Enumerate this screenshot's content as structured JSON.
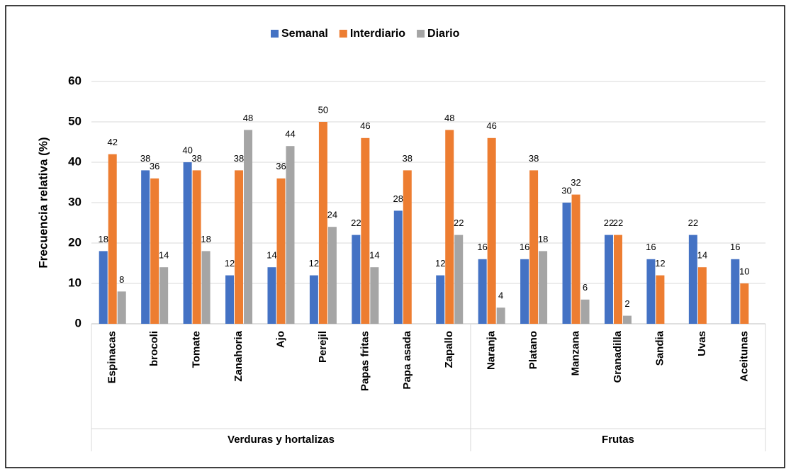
{
  "chart_data": {
    "type": "bar",
    "ylabel": "Frecuencia relativa (%)",
    "categories": [
      "Espinacas",
      "brocoli",
      "Tomate",
      "Zanahoria",
      "Ajo",
      "Perejil",
      "Papas fritas",
      "Papa asada",
      "Zapallo",
      "Naranja",
      "Platano",
      "Manzana",
      "Granadilla",
      "Sandia",
      "Uvas",
      "Aceitunas"
    ],
    "groups": [
      {
        "name": "Verduras y hortalizas",
        "count": 9
      },
      {
        "name": "Frutas",
        "count": 7
      }
    ],
    "series": [
      {
        "name": "Semanal",
        "color": "#4472c4",
        "values": [
          18,
          38,
          40,
          12,
          14,
          12,
          22,
          28,
          12,
          16,
          16,
          30,
          22,
          16,
          22,
          16
        ]
      },
      {
        "name": "Interdiario",
        "color": "#ed7d31",
        "values": [
          42,
          36,
          38,
          38,
          36,
          50,
          46,
          38,
          48,
          46,
          38,
          32,
          22,
          12,
          14,
          10
        ]
      },
      {
        "name": "Diario",
        "color": "#a5a5a5",
        "values": [
          8,
          14,
          18,
          48,
          44,
          24,
          14,
          null,
          22,
          4,
          18,
          6,
          2,
          null,
          null,
          null
        ]
      }
    ],
    "ylim": [
      0,
      60
    ],
    "yticks": [
      0,
      10,
      20,
      30,
      40,
      50,
      60
    ],
    "grid": true,
    "legend": "top"
  }
}
